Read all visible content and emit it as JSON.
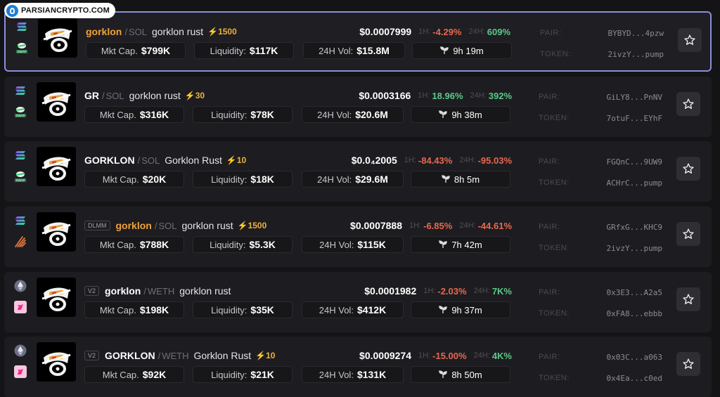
{
  "watermark": {
    "text": "PARSIANCRYPTO.COM"
  },
  "labels": {
    "mktcap": "Mkt Cap.",
    "liquidity": "Liquidity:",
    "vol": "24H Vol:",
    "h1": "1H:",
    "h24": "24H:",
    "pair": "PAIR:",
    "token": "TOKEN:"
  },
  "rows": [
    {
      "chain_icon": "solana-icon",
      "dex_icon": "swap-icon",
      "badge": "",
      "symbol": "gorklon",
      "symbol_color": "orange",
      "quote": "SOL",
      "name": "gorklon rust",
      "boost": "⚡1500",
      "price": "$0.0007999",
      "change_1h": "-4.29%",
      "change_1h_dir": "neg",
      "change_24h": "609%",
      "change_24h_dir": "pos",
      "mkt_cap": "$799K",
      "liquidity": "$117K",
      "volume_24h": "$15.8M",
      "age": "9h 19m",
      "pair": "BYBYD...4pzw",
      "token": "2ivzY...pump",
      "active": true
    },
    {
      "chain_icon": "solana-icon",
      "dex_icon": "swap-icon",
      "badge": "",
      "symbol": "GR",
      "symbol_color": "white",
      "quote": "SOL",
      "name": "gorklon rust",
      "boost": "⚡30",
      "price": "$0.0003166",
      "change_1h": "18.96%",
      "change_1h_dir": "pos",
      "change_24h": "392%",
      "change_24h_dir": "pos",
      "mkt_cap": "$316K",
      "liquidity": "$78K",
      "volume_24h": "$20.6M",
      "age": "9h 38m",
      "pair": "GiLY8...PnNV",
      "token": "7otuF...EYhF",
      "active": false
    },
    {
      "chain_icon": "solana-icon",
      "dex_icon": "swap-icon",
      "badge": "",
      "symbol": "GORKLON",
      "symbol_color": "white",
      "quote": "SOL",
      "name": "Gorklon Rust",
      "boost": "⚡10",
      "price": "$0.0₄2005",
      "change_1h": "-84.43%",
      "change_1h_dir": "neg",
      "change_24h": "-95.03%",
      "change_24h_dir": "neg",
      "mkt_cap": "$20K",
      "liquidity": "$18K",
      "volume_24h": "$29.6M",
      "age": "8h 5m",
      "pair": "FGQnC...9UW9",
      "token": "ACHrC...pump",
      "active": false
    },
    {
      "chain_icon": "solana-icon",
      "dex_icon": "meteora-icon",
      "badge": "DLMM",
      "symbol": "gorklon",
      "symbol_color": "orange",
      "quote": "SOL",
      "name": "gorklon rust",
      "boost": "⚡1500",
      "price": "$0.0007888",
      "change_1h": "-6.85%",
      "change_1h_dir": "neg",
      "change_24h": "-44.61%",
      "change_24h_dir": "neg",
      "mkt_cap": "$788K",
      "liquidity": "$5.3K",
      "volume_24h": "$115K",
      "age": "7h 42m",
      "pair": "GRfxG...KHC9",
      "token": "2ivzY...pump",
      "active": false
    },
    {
      "chain_icon": "ethereum-icon",
      "dex_icon": "uniswap-icon",
      "badge": "V2",
      "symbol": "gorklon",
      "symbol_color": "white",
      "quote": "WETH",
      "name": "gorklon rust",
      "boost": "",
      "price": "$0.0001982",
      "change_1h": "-2.03%",
      "change_1h_dir": "neg",
      "change_24h": "7K%",
      "change_24h_dir": "pos",
      "mkt_cap": "$198K",
      "liquidity": "$35K",
      "volume_24h": "$412K",
      "age": "9h 37m",
      "pair": "0x3E3...A2a5",
      "token": "0xFA8...ebbb",
      "active": false
    },
    {
      "chain_icon": "ethereum-icon",
      "dex_icon": "uniswap-icon",
      "badge": "V2",
      "symbol": "GORKLON",
      "symbol_color": "white",
      "quote": "WETH",
      "name": "Gorklon Rust",
      "boost": "⚡10",
      "price": "$0.0009274",
      "change_1h": "-15.00%",
      "change_1h_dir": "neg",
      "change_24h": "4K%",
      "change_24h_dir": "pos",
      "mkt_cap": "$92K",
      "liquidity": "$21K",
      "volume_24h": "$131K",
      "age": "8h 50m",
      "pair": "0x03C...a063",
      "token": "0x4Ea...c0ed",
      "active": false
    }
  ]
}
